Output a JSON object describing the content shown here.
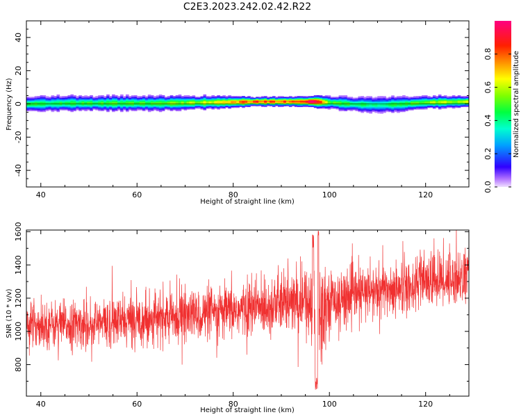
{
  "title": "C2E3.2023.242.02.42.R22",
  "chart_data": [
    {
      "type": "heatmap",
      "xlabel": "Height of straight line (km)",
      "ylabel": "Frequency (Hz)",
      "xlim": [
        37,
        129
      ],
      "ylim": [
        -50,
        50
      ],
      "xticks": [
        40,
        60,
        80,
        100,
        120
      ],
      "yticks": [
        -40,
        -20,
        0,
        20,
        40
      ],
      "grid": false,
      "band": {
        "description_x": [
          37,
          45,
          55,
          65,
          75,
          85,
          90,
          95,
          97,
          100,
          105,
          110,
          115,
          120,
          129
        ],
        "peak_amplitude": [
          0.45,
          0.45,
          0.48,
          0.5,
          0.6,
          0.85,
          0.8,
          0.9,
          1.0,
          0.5,
          0.45,
          0.4,
          0.45,
          0.55,
          0.6
        ],
        "half_width_hz": [
          4,
          4,
          4,
          4,
          3.5,
          2.5,
          2.5,
          3,
          3,
          3.5,
          4,
          4,
          4,
          3.5,
          3
        ],
        "peak_frequency_hz": [
          0,
          0.5,
          0.5,
          0.5,
          1,
          1.5,
          1.5,
          1.5,
          1.5,
          1,
          0,
          -0.5,
          0,
          1,
          1.5
        ]
      },
      "colorbar": {
        "label": "Normalized spectral amplitude",
        "range": [
          0,
          1
        ],
        "ticks": [
          0.0,
          0.2,
          0.4,
          0.6,
          0.8
        ],
        "tick_labels": [
          "0.0",
          "0.2",
          "0.4",
          "0.6",
          "0.8"
        ],
        "colormap": "gist_rainbow_r"
      }
    },
    {
      "type": "line",
      "xlabel": "Height of straight line (km)",
      "ylabel": "SNR (10 * v/v)",
      "xlim": [
        37,
        129
      ],
      "ylim": [
        610,
        1610
      ],
      "xticks": [
        40,
        60,
        80,
        100,
        120
      ],
      "yticks": [
        800,
        1000,
        1200,
        1400,
        1600
      ],
      "color": "#f03030",
      "grid": false,
      "trend_x": [
        37,
        50,
        60,
        70,
        80,
        88,
        92,
        96,
        97,
        98,
        100,
        110,
        120,
        129
      ],
      "trend_mean": [
        1040,
        1040,
        1070,
        1090,
        1120,
        1160,
        1170,
        1180,
        1000,
        1150,
        1190,
        1240,
        1300,
        1330
      ],
      "noise_amplitude": [
        90,
        95,
        100,
        100,
        105,
        120,
        120,
        150,
        350,
        200,
        110,
        110,
        110,
        110
      ]
    }
  ]
}
